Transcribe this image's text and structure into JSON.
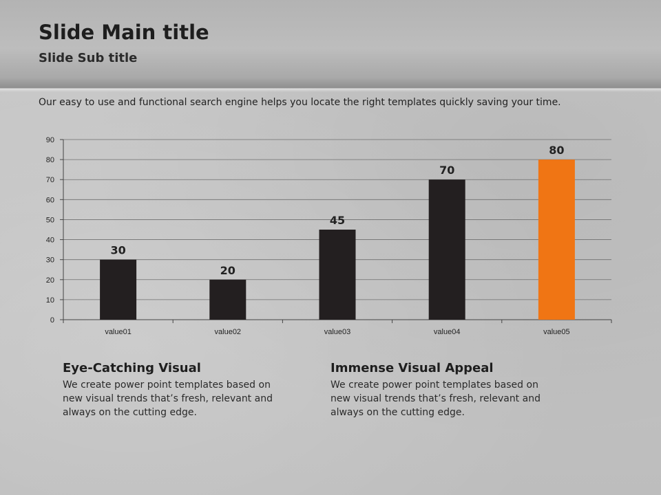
{
  "slide": {
    "title": "Slide Main title",
    "subtitle": "Slide Sub title",
    "intro": "Our easy to use and functional search engine helps you locate the right templates quickly saving your time."
  },
  "chart_data": {
    "type": "bar",
    "title": "",
    "xlabel": "",
    "ylabel": "",
    "categories": [
      "value01",
      "value02",
      "value03",
      "value04",
      "value05"
    ],
    "values": [
      30,
      20,
      45,
      70,
      80
    ],
    "ylim": [
      0,
      90
    ],
    "yticks": [
      0,
      10,
      20,
      30,
      40,
      50,
      60,
      70,
      80,
      90
    ],
    "grid": true,
    "legend": "none",
    "colors": {
      "bar": "#231f20",
      "highlight_bar": "#f07514",
      "highlight_index": 4,
      "grid": "#6e6e6e"
    }
  },
  "columns": [
    {
      "heading": "Eye-Catching Visual",
      "body": "We create power point templates based on new visual trends that’s fresh, relevant and always on the cutting edge."
    },
    {
      "heading": "Immense Visual Appeal",
      "body": "We create power point templates based on new visual trends that’s fresh, relevant and always on the cutting edge."
    }
  ]
}
